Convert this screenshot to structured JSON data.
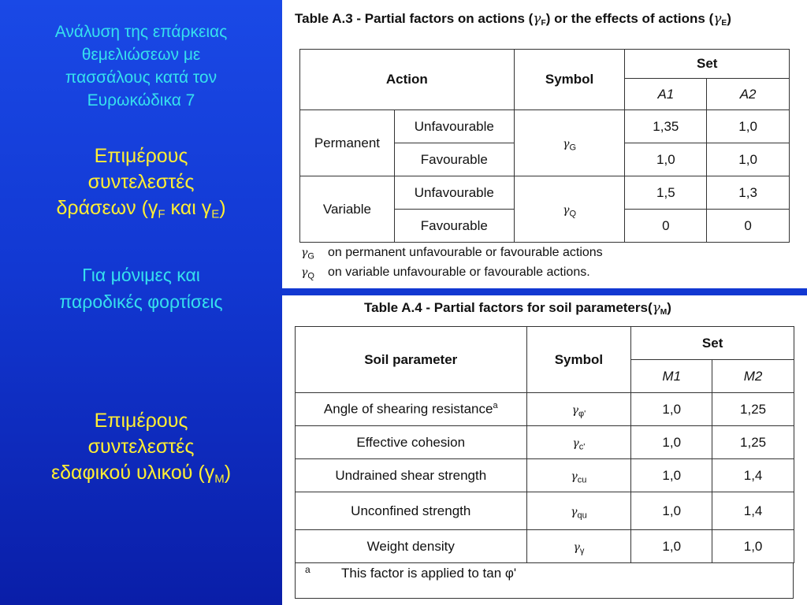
{
  "left": {
    "title_lines": [
      "Ανάλυση της επάρκειας",
      "θεμελιώσεων με",
      "πασσάλους κατά τον",
      "Ευρωκώδικα 7"
    ],
    "block1": {
      "line1": "Επιμέρους",
      "line2": "συντελεστές",
      "line3_pre": "δράσεων (γ",
      "sub1": "F",
      "mid": " και γ",
      "sub2": "E",
      "post": ")"
    },
    "block2": {
      "line1": "Για μόνιμες και",
      "line2": "παροδικές φορτίσεις"
    },
    "block3": {
      "line1": "Επιμέρους",
      "line2": "συντελεστές",
      "line3_pre": "εδαφικού υλικού (γ",
      "sub": "M",
      "post": ")"
    }
  },
  "tableA3": {
    "title_pre": "Table A.3 - Partial factors on actions (",
    "title_g1": "γ",
    "title_s1": "F",
    "title_mid": ") or the effects of actions (",
    "title_g2": "γ",
    "title_s2": "E",
    "title_post": ")",
    "headers": {
      "action": "Action",
      "symbol": "Symbol",
      "set": "Set",
      "a1": "A1",
      "a2": "A2"
    },
    "rows": [
      {
        "group": "Permanent",
        "type": "Unfavourable",
        "sym": "γ",
        "sym_sub": "G",
        "a1": "1,35",
        "a2": "1,0"
      },
      {
        "type": "Favourable",
        "a1": "1,0",
        "a2": "1,0"
      },
      {
        "group": "Variable",
        "type": "Unfavourable",
        "sym": "γ",
        "sym_sub": "Q",
        "a1": "1,5",
        "a2": "1,3"
      },
      {
        "type": "Favourable",
        "a1": "0",
        "a2": "0"
      }
    ],
    "legend": [
      {
        "sym": "γ",
        "sub": "G",
        "text": "on permanent unfavourable or favourable actions"
      },
      {
        "sym": "γ",
        "sub": "Q",
        "text": "on variable unfavourable or favourable actions."
      }
    ]
  },
  "tableA4": {
    "title_pre": "Table A.4 - Partial factors for soil parameters(",
    "title_g": "γ",
    "title_s": "M",
    "title_post": ")",
    "headers": {
      "param": "Soil parameter",
      "symbol": "Symbol",
      "set": "Set",
      "m1": "M1",
      "m2": "M2"
    },
    "rows": [
      {
        "param": "Angle of shearing resistance",
        "param_sup": "a",
        "sym": "γ",
        "sub": "φ'",
        "m1": "1,0",
        "m2": "1,25"
      },
      {
        "param": "Effective cohesion",
        "param_sup": "",
        "sym": "γ",
        "sub": "c'",
        "m1": "1,0",
        "m2": "1,25"
      },
      {
        "param": "Undrained shear strength",
        "param_sup": "",
        "sym": "γ",
        "sub": "cu",
        "m1": "1,0",
        "m2": "1,4"
      },
      {
        "param": "Unconfined strength",
        "param_sup": "",
        "sym": "γ",
        "sub": "qu",
        "m1": "1,0",
        "m2": "1,4"
      },
      {
        "param": "Weight density",
        "param_sup": "",
        "sym": "γ",
        "sub": "γ",
        "m1": "1,0",
        "m2": "1,0"
      }
    ],
    "footnote": {
      "mark": "a",
      "text": "This factor is applied to tan φ'"
    }
  }
}
